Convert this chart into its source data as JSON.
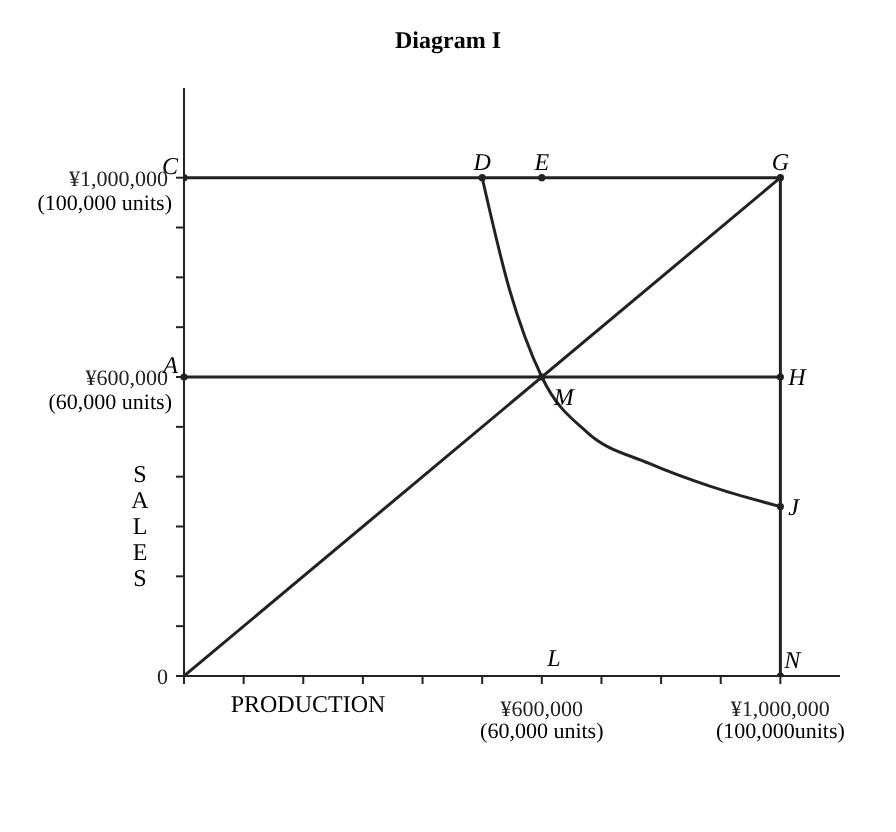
{
  "chart_data": {
    "type": "line",
    "title": "Diagram I",
    "xlabel": "PRODUCTION",
    "ylabel": "SALES",
    "xlim": [
      0,
      1100000
    ],
    "ylim": [
      0,
      1180000
    ],
    "xticks": [
      {
        "value": 0,
        "label": null
      },
      {
        "value": 100000,
        "label": null
      },
      {
        "value": 200000,
        "label": null
      },
      {
        "value": 300000,
        "label": null
      },
      {
        "value": 400000,
        "label": null
      },
      {
        "value": 500000,
        "label": null
      },
      {
        "value": 600000,
        "label": "¥600,000"
      },
      {
        "value": 700000,
        "label": null
      },
      {
        "value": 800000,
        "label": null
      },
      {
        "value": 900000,
        "label": null
      },
      {
        "value": 1000000,
        "label": "¥1,000,000"
      }
    ],
    "yticks": [
      0,
      {
        "value": 100000,
        "label": null
      },
      {
        "value": 200000,
        "label": null
      },
      {
        "value": 300000,
        "label": null
      },
      {
        "value": 400000,
        "label": null
      },
      {
        "value": 500000,
        "label": null
      },
      {
        "value": 600000,
        "label": "¥600,000"
      },
      {
        "value": 700000,
        "label": null
      },
      {
        "value": 800000,
        "label": null
      },
      {
        "value": 900000,
        "label": null
      },
      {
        "value": 1000000,
        "label": "¥1,000,000"
      }
    ],
    "line_style": "solid",
    "series": [
      {
        "color": "#222222",
        "x": [
          0,
          1000000
        ],
        "values": [
          0,
          1000000
        ]
      },
      {
        "color": "#222222",
        "marker": "circle",
        "x": [
          0,
          500000,
          600000,
          1000000,
          1000000,
          1000000,
          1000000
        ],
        "values": [
          1000000,
          1000000,
          1000000,
          1000000,
          600000,
          340000,
          0
        ]
      },
      {
        "color": "#222222",
        "x": [
          0,
          1000000
        ],
        "values": [
          600000,
          600000
        ]
      },
      {
        "color": "#222222",
        "x": [
          500000,
          545000,
          600000,
          676000,
          779000,
          884000,
          1000000
        ],
        "values": [
          1000000,
          779000,
          600000,
          489000,
          427000,
          380000,
          340000
        ]
      }
    ],
    "annotations": [
      "(60,000 units)",
      "(100,000 units)",
      "(60,000 units)",
      "(100,000units)",
      "L",
      {
        "text": "C",
        "x": 0,
        "y": 1000000
      },
      {
        "text": "D",
        "x": 500000,
        "y": 1000000
      },
      {
        "text": "E",
        "x": 600000,
        "y": 1000000
      },
      {
        "text": "G",
        "x": 1000000,
        "y": 1000000
      },
      {
        "text": "A",
        "x": 0,
        "y": 600000
      },
      {
        "text": "M",
        "x": 600000,
        "y": 600000
      },
      {
        "text": "H",
        "x": 1000000,
        "y": 600000
      },
      {
        "text": "J",
        "x": 1000000,
        "y": 340000
      },
      {
        "text": "N",
        "x": 1000000,
        "y": 0
      }
    ]
  }
}
